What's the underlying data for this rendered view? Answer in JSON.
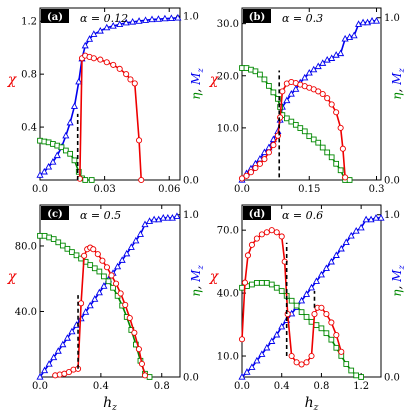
{
  "chart_data": [
    {
      "type": "line",
      "panel_label": "(a)",
      "alpha_text": "α = 0.12",
      "xlim": [
        0,
        0.065
      ],
      "ylim_left": [
        0,
        1.3
      ],
      "ylim_right": [
        0,
        1.05
      ],
      "xticks": [
        0,
        0.03,
        0.06
      ],
      "xtick_labels": [
        "0.0",
        "0.03",
        "0.06"
      ],
      "yticks_left": [
        0.4,
        0.8,
        1.2
      ],
      "ytick_labels_left": [
        "0.4",
        "0.8",
        "1.2"
      ],
      "yticks_right": [
        0,
        1
      ],
      "ytick_labels_right": [
        "0.0",
        "1.0"
      ],
      "ylabel_left": "χ",
      "ylabel_right_parts": [
        "η",
        ", ",
        "M",
        "z"
      ],
      "xlabel": "",
      "dashed_x": [
        0.0175
      ],
      "dashed_range": [
        [
          0.0,
          0.5
        ]
      ],
      "series": [
        {
          "axis": "right",
          "color": "#0000ee",
          "marker": "triangle",
          "x": [
            0,
            0.002,
            0.004,
            0.006,
            0.008,
            0.01,
            0.012,
            0.014,
            0.016,
            0.018,
            0.0195,
            0.021,
            0.023,
            0.025,
            0.028,
            0.031,
            0.034,
            0.037,
            0.04,
            0.043,
            0.046,
            0.049,
            0.052,
            0.055,
            0.058,
            0.061,
            0.064
          ],
          "y": [
            0.03,
            0.05,
            0.08,
            0.11,
            0.15,
            0.2,
            0.27,
            0.35,
            0.45,
            0.6,
            0.74,
            0.82,
            0.86,
            0.89,
            0.91,
            0.93,
            0.94,
            0.95,
            0.96,
            0.965,
            0.97,
            0.975,
            0.98,
            0.982,
            0.985,
            0.987,
            0.99
          ]
        },
        {
          "axis": "right",
          "color": "#008800",
          "marker": "square",
          "x": [
            0,
            0.002,
            0.004,
            0.006,
            0.008,
            0.01,
            0.012,
            0.014,
            0.016,
            0.018,
            0.0195,
            0.021,
            0.024
          ],
          "y": [
            0.24,
            0.235,
            0.23,
            0.22,
            0.21,
            0.2,
            0.18,
            0.16,
            0.12,
            0.05,
            0.01,
            0.0,
            0.0
          ]
        },
        {
          "axis": "left",
          "color": "#ee0000",
          "marker": "circle",
          "x": [
            0.0185,
            0.0195,
            0.021,
            0.023,
            0.025,
            0.028,
            0.031,
            0.034,
            0.037,
            0.04,
            0.042,
            0.044,
            0.046,
            0.047
          ],
          "y": [
            0.01,
            0.92,
            0.94,
            0.93,
            0.92,
            0.91,
            0.89,
            0.87,
            0.84,
            0.8,
            0.76,
            0.73,
            0.3,
            0.0
          ]
        }
      ]
    },
    {
      "type": "line",
      "panel_label": "(b)",
      "alpha_text": "α = 0.3",
      "xlim": [
        0,
        0.31
      ],
      "ylim_left": [
        0,
        33
      ],
      "ylim_right": [
        0,
        1.06
      ],
      "xticks": [
        0,
        0.15,
        0.3
      ],
      "xtick_labels": [
        "0.0",
        "0.15",
        "0.3"
      ],
      "yticks_left": [
        10,
        20,
        30
      ],
      "ytick_labels_left": [
        "10.0",
        "20.0",
        "30.0"
      ],
      "yticks_right": [
        0,
        1
      ],
      "ytick_labels_right": [
        "0.0",
        "1.0"
      ],
      "ylabel_left": "χ",
      "ylabel_right_parts": [
        "η",
        ", ",
        "M",
        "z"
      ],
      "xlabel": "",
      "dashed_x": [
        0.083
      ],
      "dashed_range": [
        [
          0.5,
          21
        ]
      ],
      "series": [
        {
          "axis": "right",
          "color": "#0000ee",
          "marker": "triangle",
          "x": [
            0,
            0.01,
            0.02,
            0.03,
            0.04,
            0.05,
            0.06,
            0.07,
            0.08,
            0.085,
            0.09,
            0.1,
            0.11,
            0.12,
            0.13,
            0.14,
            0.15,
            0.16,
            0.17,
            0.18,
            0.19,
            0.2,
            0.21,
            0.22,
            0.23,
            0.24,
            0.25,
            0.26,
            0.27,
            0.28,
            0.29,
            0.3
          ],
          "y": [
            0.0,
            0.04,
            0.07,
            0.1,
            0.13,
            0.17,
            0.2,
            0.25,
            0.3,
            0.37,
            0.45,
            0.49,
            0.53,
            0.56,
            0.6,
            0.63,
            0.66,
            0.68,
            0.7,
            0.72,
            0.74,
            0.75,
            0.77,
            0.78,
            0.87,
            0.88,
            0.89,
            0.96,
            0.97,
            0.97,
            0.98,
            0.98
          ]
        },
        {
          "axis": "right",
          "color": "#008800",
          "marker": "square",
          "x": [
            0,
            0.01,
            0.02,
            0.03,
            0.04,
            0.05,
            0.06,
            0.07,
            0.08,
            0.085,
            0.09,
            0.1,
            0.11,
            0.12,
            0.13,
            0.14,
            0.15,
            0.16,
            0.17,
            0.18,
            0.19,
            0.2,
            0.21,
            0.22,
            0.23,
            0.24
          ],
          "y": [
            0.69,
            0.69,
            0.68,
            0.67,
            0.65,
            0.62,
            0.58,
            0.54,
            0.5,
            0.45,
            0.4,
            0.38,
            0.36,
            0.34,
            0.32,
            0.3,
            0.27,
            0.25,
            0.23,
            0.2,
            0.17,
            0.14,
            0.1,
            0.06,
            0.0,
            0.0
          ]
        },
        {
          "axis": "left",
          "color": "#ee0000",
          "marker": "circle",
          "x": [
            0.0,
            0.01,
            0.02,
            0.03,
            0.04,
            0.05,
            0.06,
            0.07,
            0.08,
            0.085,
            0.09,
            0.1,
            0.11,
            0.12,
            0.13,
            0.14,
            0.15,
            0.16,
            0.17,
            0.18,
            0.19,
            0.2,
            0.21,
            0.22,
            0.225,
            0.23
          ],
          "y": [
            0.3,
            0.8,
            1.5,
            2.3,
            3.1,
            4.0,
            5.3,
            6.7,
            8.5,
            12,
            17,
            18.5,
            18.8,
            18.6,
            18.3,
            18,
            17.7,
            17.4,
            17,
            16.5,
            15.7,
            14.5,
            13,
            10,
            6,
            0.5
          ]
        }
      ]
    },
    {
      "type": "line",
      "panel_label": "(c)",
      "alpha_text": "α = 0.5",
      "xlim": [
        0,
        0.92
      ],
      "ylim_left": [
        0,
        105
      ],
      "ylim_right": [
        0,
        1.06
      ],
      "xticks": [
        0,
        0.4,
        0.8
      ],
      "xtick_labels": [
        "0.0",
        "0.4",
        "0.8"
      ],
      "yticks_left": [
        40,
        80
      ],
      "ytick_labels_left": [
        "40.0",
        "80.0"
      ],
      "yticks_right": [
        0,
        1
      ],
      "ytick_labels_right": [
        "0.0",
        "1.0"
      ],
      "ylabel_left": "χ",
      "ylabel_right_parts": [
        "η",
        ", ",
        "M",
        "z"
      ],
      "xlabel": "h",
      "xlabel_sub": "z",
      "dashed_x": [
        0.25
      ],
      "dashed_range": [
        [
          5,
          50
        ]
      ],
      "series": [
        {
          "axis": "right",
          "color": "#0000ee",
          "marker": "triangle",
          "x": [
            0,
            0.03,
            0.06,
            0.09,
            0.12,
            0.15,
            0.18,
            0.21,
            0.24,
            0.27,
            0.3,
            0.33,
            0.36,
            0.39,
            0.42,
            0.45,
            0.48,
            0.51,
            0.54,
            0.57,
            0.6,
            0.63,
            0.66,
            0.69,
            0.72,
            0.75,
            0.78,
            0.81,
            0.84,
            0.87,
            0.9
          ],
          "y": [
            0.0,
            0.04,
            0.08,
            0.12,
            0.16,
            0.2,
            0.24,
            0.28,
            0.32,
            0.36,
            0.4,
            0.44,
            0.48,
            0.52,
            0.56,
            0.6,
            0.64,
            0.68,
            0.72,
            0.76,
            0.8,
            0.84,
            0.88,
            0.94,
            0.96,
            0.97,
            0.97,
            0.98,
            0.98,
            0.98,
            0.99
          ]
        },
        {
          "axis": "right",
          "color": "#008800",
          "marker": "square",
          "x": [
            0,
            0.03,
            0.06,
            0.09,
            0.12,
            0.15,
            0.18,
            0.21,
            0.24,
            0.27,
            0.3,
            0.33,
            0.36,
            0.39,
            0.42,
            0.45,
            0.48,
            0.51,
            0.54,
            0.57,
            0.6,
            0.63,
            0.66,
            0.69,
            0.72
          ],
          "y": [
            0.87,
            0.87,
            0.86,
            0.85,
            0.83,
            0.81,
            0.79,
            0.77,
            0.75,
            0.73,
            0.71,
            0.69,
            0.67,
            0.65,
            0.62,
            0.59,
            0.55,
            0.5,
            0.44,
            0.37,
            0.29,
            0.2,
            0.1,
            0.02,
            0.0
          ]
        },
        {
          "axis": "left",
          "color": "#ee0000",
          "marker": "circle",
          "x": [
            0.1,
            0.13,
            0.16,
            0.19,
            0.22,
            0.25,
            0.27,
            0.29,
            0.31,
            0.33,
            0.35,
            0.38,
            0.41,
            0.44,
            0.47,
            0.5,
            0.53,
            0.56,
            0.59,
            0.62,
            0.65,
            0.67,
            0.69
          ],
          "y": [
            1,
            1.5,
            2,
            3,
            4.5,
            5,
            45,
            74,
            78,
            79,
            78,
            75,
            71,
            67,
            62,
            57,
            51,
            44,
            36,
            27,
            17,
            8,
            1
          ]
        }
      ]
    },
    {
      "type": "line",
      "panel_label": "(d)",
      "alpha_text": "α = 0.6",
      "xlim": [
        0,
        1.4
      ],
      "ylim_left": [
        0,
        82
      ],
      "ylim_right": [
        0,
        1.06
      ],
      "xticks": [
        0,
        0.4,
        0.8,
        1.2
      ],
      "xtick_labels": [
        "0.0",
        "0.4",
        "0.8",
        "1.2"
      ],
      "yticks_left": [
        10,
        40,
        70
      ],
      "ytick_labels_left": [
        "10.0",
        "40.0",
        "70.0"
      ],
      "yticks_right": [
        0,
        1
      ],
      "ytick_labels_right": [
        "0.0",
        "1.0"
      ],
      "ylabel_left": "χ",
      "ylabel_right_parts": [
        "η",
        ", ",
        "M",
        "z"
      ],
      "xlabel": "h",
      "xlabel_sub": "z",
      "dashed_x": [
        0.45,
        0.73
      ],
      "dashed_range": [
        [
          10,
          64
        ],
        [
          33,
          41
        ]
      ],
      "series": [
        {
          "axis": "right",
          "color": "#0000ee",
          "marker": "triangle",
          "x": [
            0,
            0.05,
            0.1,
            0.15,
            0.2,
            0.25,
            0.3,
            0.35,
            0.4,
            0.45,
            0.5,
            0.55,
            0.6,
            0.65,
            0.7,
            0.75,
            0.8,
            0.85,
            0.9,
            0.95,
            1.0,
            1.05,
            1.1,
            1.15,
            1.2,
            1.25,
            1.3,
            1.35,
            1.4
          ],
          "y": [
            0.0,
            0.03,
            0.06,
            0.1,
            0.14,
            0.18,
            0.22,
            0.26,
            0.31,
            0.35,
            0.39,
            0.43,
            0.47,
            0.51,
            0.55,
            0.59,
            0.63,
            0.67,
            0.71,
            0.75,
            0.79,
            0.83,
            0.87,
            0.9,
            0.92,
            0.97,
            0.97,
            0.98,
            0.98
          ]
        },
        {
          "axis": "right",
          "color": "#008800",
          "marker": "square",
          "x": [
            0,
            0.05,
            0.1,
            0.15,
            0.2,
            0.25,
            0.3,
            0.35,
            0.4,
            0.45,
            0.5,
            0.55,
            0.6,
            0.65,
            0.7,
            0.75,
            0.8,
            0.85,
            0.9,
            0.95,
            1.0,
            1.05,
            1.1,
            1.15,
            1.2
          ],
          "y": [
            0.55,
            0.56,
            0.57,
            0.58,
            0.58,
            0.58,
            0.57,
            0.55,
            0.53,
            0.5,
            0.47,
            0.44,
            0.4,
            0.37,
            0.34,
            0.32,
            0.3,
            0.27,
            0.23,
            0.18,
            0.13,
            0.08,
            0.04,
            0.01,
            0.0
          ]
        },
        {
          "axis": "left",
          "color": "#ee0000",
          "marker": "circle",
          "x": [
            0,
            0.03,
            0.06,
            0.1,
            0.15,
            0.2,
            0.25,
            0.3,
            0.35,
            0.4,
            0.43,
            0.46,
            0.5,
            0.55,
            0.6,
            0.65,
            0.7,
            0.73,
            0.76,
            0.8,
            0.85,
            0.9,
            0.95,
            1.0
          ],
          "y": [
            18,
            45,
            58,
            63,
            66,
            68,
            69,
            70,
            69,
            67,
            55,
            30,
            10,
            7,
            6,
            7,
            10,
            30,
            33,
            33,
            30,
            26,
            20,
            12
          ]
        }
      ]
    }
  ]
}
